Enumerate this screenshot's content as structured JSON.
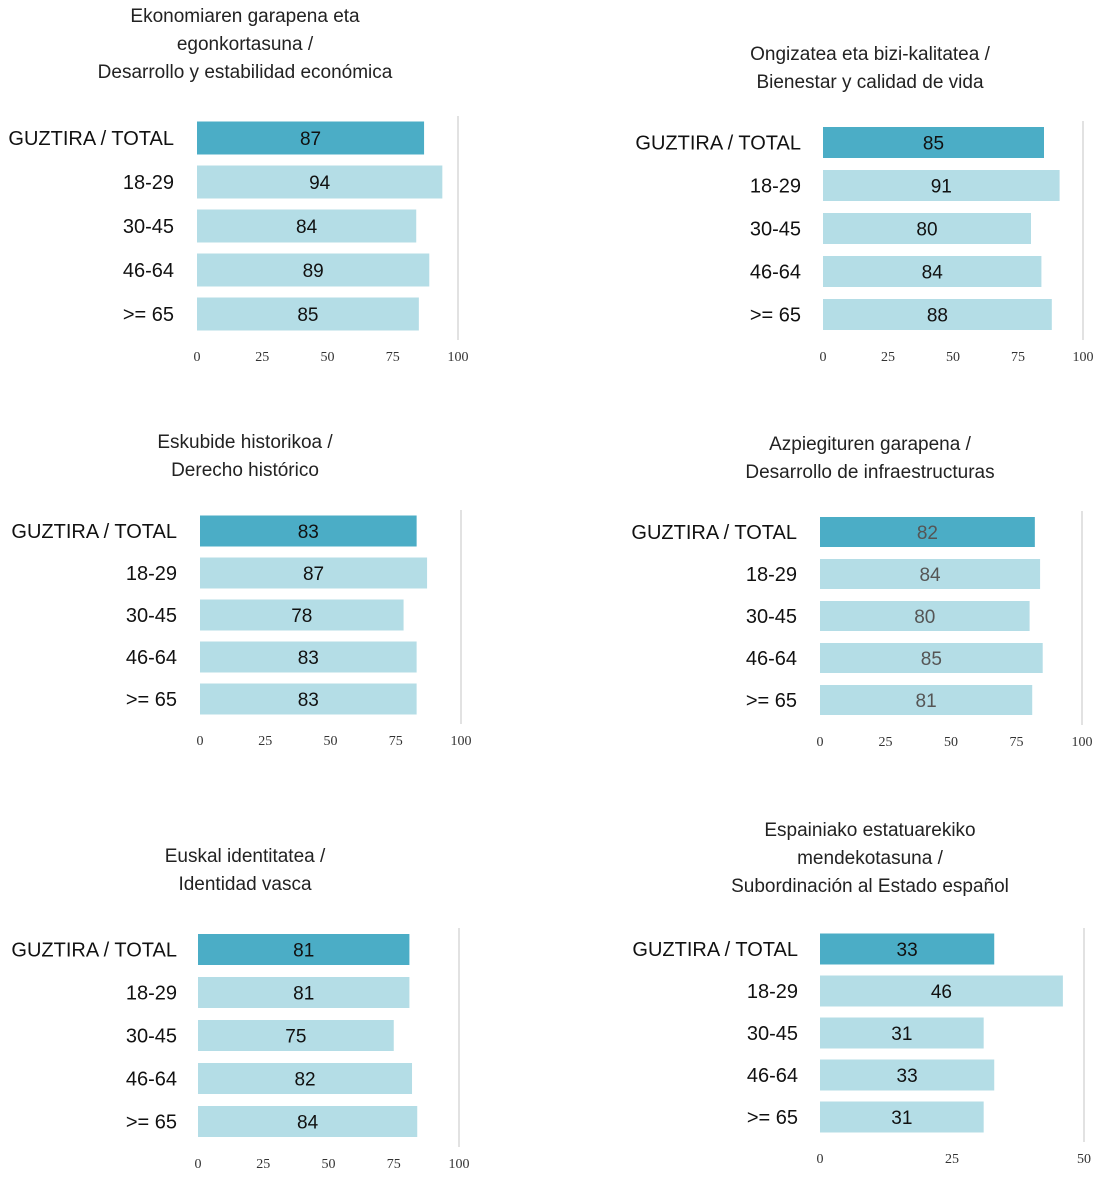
{
  "colors": {
    "total_bar": "#4badc6",
    "group_bar": "#b4dde6",
    "gridline": "#d9d9d9",
    "label_dark": "#111111",
    "label_muted": "#555555"
  },
  "chart_data": [
    {
      "type": "bar",
      "orientation": "horizontal",
      "title_lines": [
        "Ekonomiaren garapena eta",
        "egonkortasuna /",
        "Desarrollo y estabilidad económica"
      ],
      "categories": [
        "GUZTIRA / TOTAL",
        "18-29",
        "30-45",
        "46-64",
        ">= 65"
      ],
      "values": [
        87,
        94,
        84,
        89,
        85
      ],
      "xlim": [
        0,
        100
      ],
      "xticks": [
        0,
        25,
        50,
        75,
        100
      ]
    },
    {
      "type": "bar",
      "orientation": "horizontal",
      "title_lines": [
        "Ongizatea eta bizi-kalitatea /",
        "Bienestar y calidad de vida"
      ],
      "categories": [
        "GUZTIRA / TOTAL",
        "18-29",
        "30-45",
        "46-64",
        ">= 65"
      ],
      "values": [
        85,
        91,
        80,
        84,
        88
      ],
      "xlim": [
        0,
        100
      ],
      "xticks": [
        0,
        25,
        50,
        75,
        100
      ]
    },
    {
      "type": "bar",
      "orientation": "horizontal",
      "title_lines": [
        "Eskubide historikoa /",
        "Derecho histórico"
      ],
      "categories": [
        "GUZTIRA / TOTAL",
        "18-29",
        "30-45",
        "46-64",
        ">= 65"
      ],
      "values": [
        83,
        87,
        78,
        83,
        83
      ],
      "xlim": [
        0,
        100
      ],
      "xticks": [
        0,
        25,
        50,
        75,
        100
      ]
    },
    {
      "type": "bar",
      "orientation": "horizontal",
      "title_lines": [
        "Azpiegituren garapena /",
        "Desarrollo de infraestructuras"
      ],
      "categories": [
        "GUZTIRA / TOTAL",
        "18-29",
        "30-45",
        "46-64",
        ">= 65"
      ],
      "values": [
        82,
        84,
        80,
        85,
        81
      ],
      "xlim": [
        0,
        100
      ],
      "xticks": [
        0,
        25,
        50,
        75,
        100
      ],
      "value_label_color": "muted"
    },
    {
      "type": "bar",
      "orientation": "horizontal",
      "title_lines": [
        "Euskal identitatea /",
        "Identidad vasca"
      ],
      "categories": [
        "GUZTIRA / TOTAL",
        "18-29",
        "30-45",
        "46-64",
        ">= 65"
      ],
      "values": [
        81,
        81,
        75,
        82,
        84
      ],
      "xlim": [
        0,
        100
      ],
      "xticks": [
        0,
        25,
        50,
        75,
        100
      ]
    },
    {
      "type": "bar",
      "orientation": "horizontal",
      "title_lines": [
        "Espainiako estatuarekiko",
        "mendekotasuna /",
        "Subordinación al Estado español"
      ],
      "categories": [
        "GUZTIRA / TOTAL",
        "18-29",
        "30-45",
        "46-64",
        ">= 65"
      ],
      "values": [
        33,
        46,
        31,
        33,
        31
      ],
      "xlim": [
        0,
        50
      ],
      "xticks": [
        0,
        25,
        50
      ]
    }
  ]
}
